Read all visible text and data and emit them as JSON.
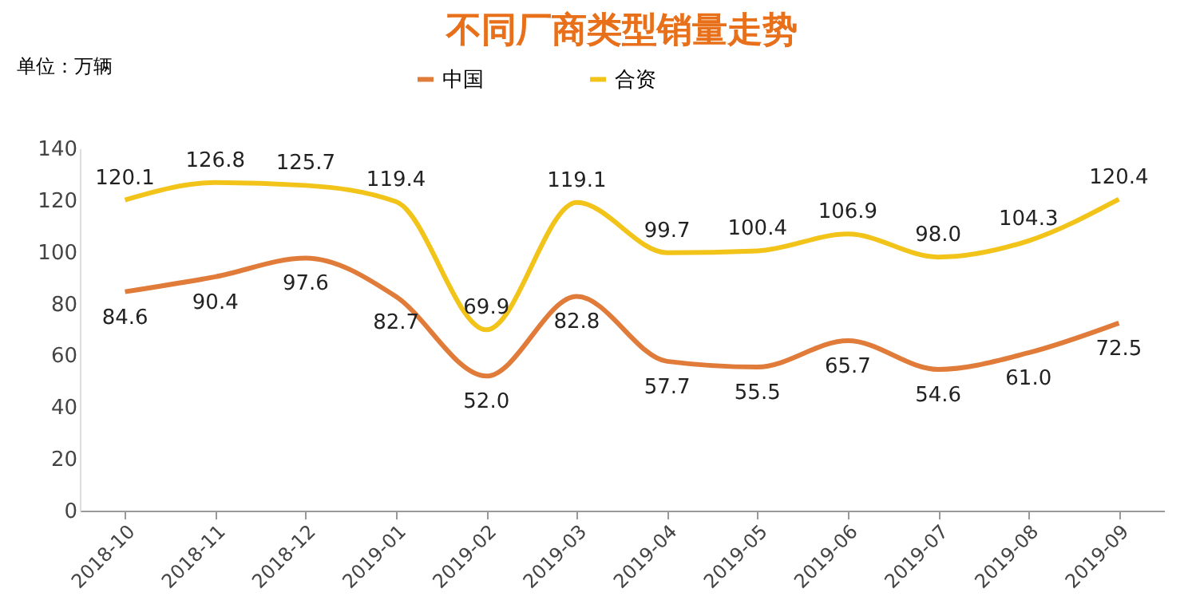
{
  "chart_data": {
    "type": "line",
    "title": "不同厂商类型销量走势",
    "ylabel": "单位：万辆",
    "categories": [
      "2018-10",
      "2018-11",
      "2018-12",
      "2019-01",
      "2019-02",
      "2019-03",
      "2019-04",
      "2019-05",
      "2019-06",
      "2019-07",
      "2019-08",
      "2019-09"
    ],
    "series": [
      {
        "name": "中国",
        "color": "#e07b39",
        "values": [
          84.6,
          90.4,
          97.6,
          82.7,
          52.0,
          82.8,
          57.7,
          55.5,
          65.7,
          54.6,
          61.0,
          72.5
        ],
        "value_labels": [
          "84.6",
          "90.4",
          "97.6",
          "82.7",
          "52.0",
          "82.8",
          "57.7",
          "55.5",
          "65.7",
          "54.6",
          "61.0",
          "72.5"
        ]
      },
      {
        "name": "合资",
        "color": "#f2c318",
        "values": [
          120.1,
          126.8,
          125.7,
          119.4,
          69.9,
          119.1,
          99.7,
          100.4,
          106.9,
          98.0,
          104.3,
          120.4
        ],
        "value_labels": [
          "120.1",
          "126.8",
          "125.7",
          "119.4",
          "69.9",
          "119.1",
          "99.7",
          "100.4",
          "106.9",
          "98.0",
          "104.3",
          "120.4"
        ]
      }
    ],
    "ylim": [
      0,
      140
    ],
    "yticks": [
      0,
      20,
      40,
      60,
      80,
      100,
      120,
      140
    ],
    "grid": false,
    "legend": "top",
    "marker": "none",
    "line_style": "solid"
  }
}
